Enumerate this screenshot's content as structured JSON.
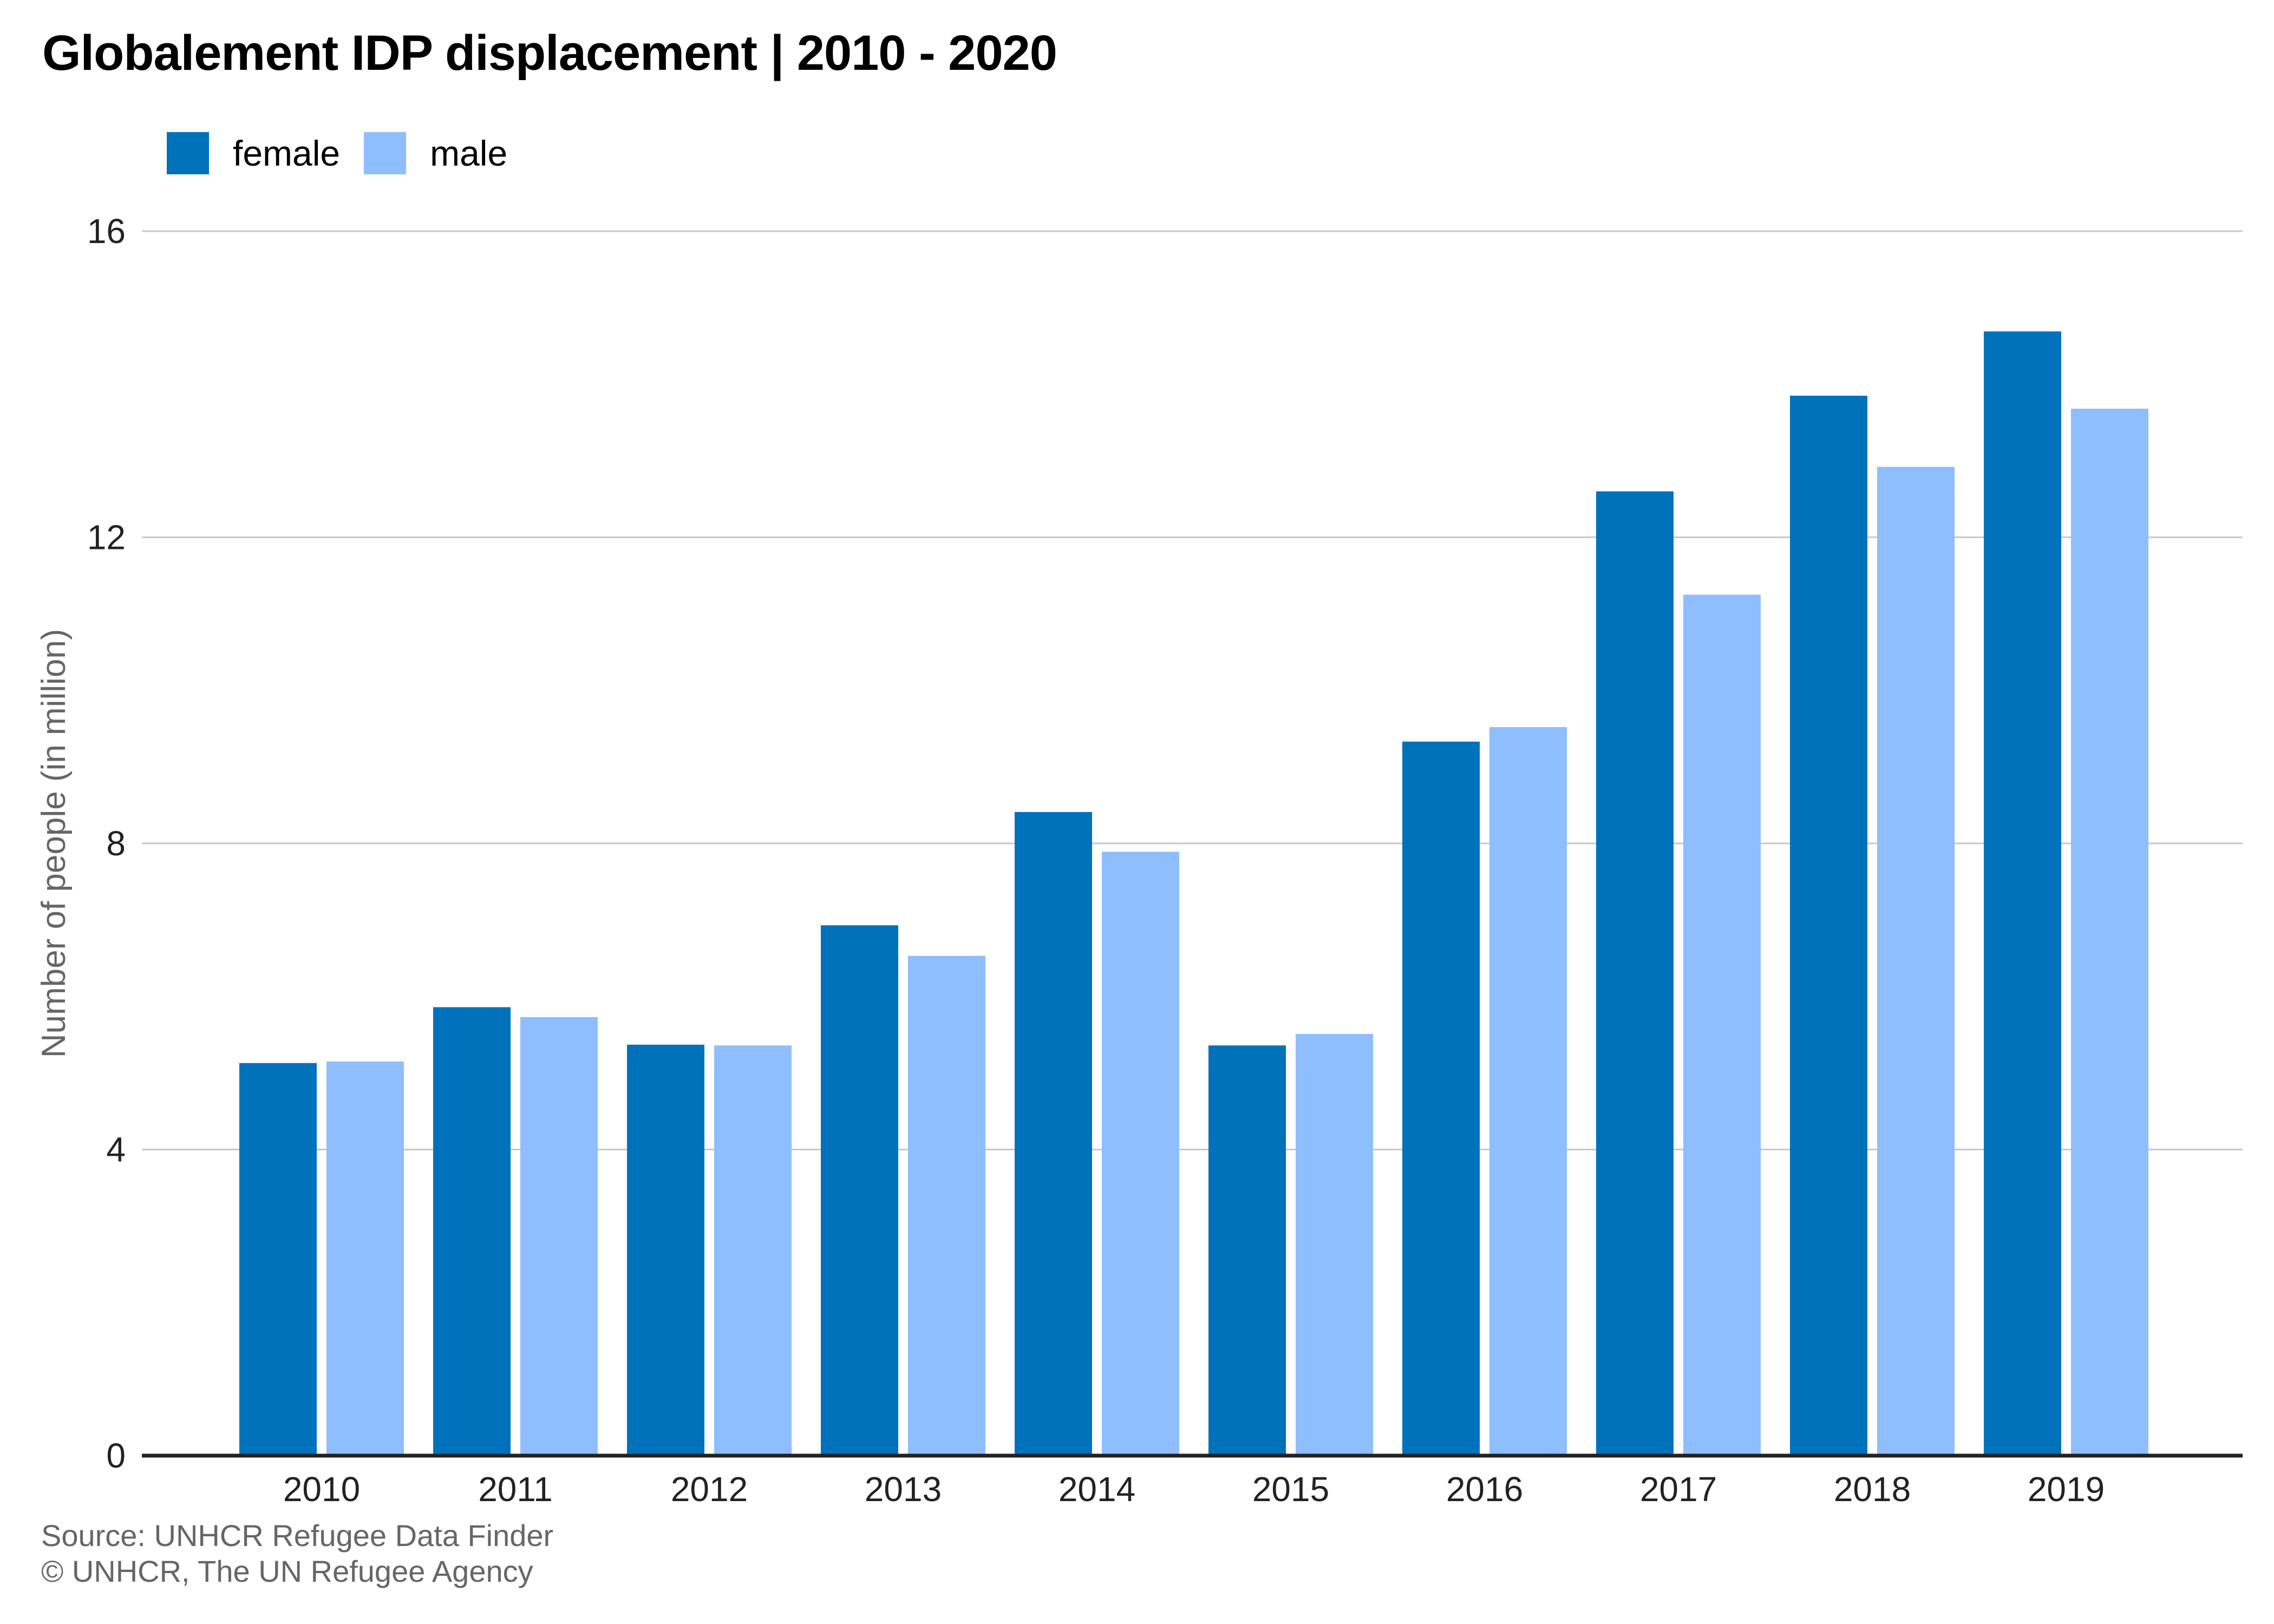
{
  "chart_data": {
    "type": "bar",
    "title": "Globalement IDP displacement | 2010 - 2020",
    "ylabel": "Number of people (in million)",
    "xlabel": "",
    "categories": [
      "2010",
      "2011",
      "2012",
      "2013",
      "2014",
      "2015",
      "2016",
      "2017",
      "2018",
      "2019"
    ],
    "series": [
      {
        "name": "female",
        "color": "#0072bc",
        "values": [
          5.13,
          5.86,
          5.37,
          6.93,
          8.41,
          5.36,
          9.33,
          12.6,
          13.85,
          14.69
        ]
      },
      {
        "name": "male",
        "color": "#8ebefe",
        "values": [
          5.15,
          5.73,
          5.36,
          6.53,
          7.89,
          5.51,
          9.52,
          11.25,
          12.92,
          13.68
        ]
      }
    ],
    "ylim": [
      0,
      16
    ],
    "yticks": [
      "0",
      "4",
      "8",
      "12",
      "16"
    ],
    "grid": true,
    "legend_position": "top-left",
    "source_lines": [
      "Source: UNHCR Refugee Data Finder",
      "© UNHCR, The UN Refugee Agency"
    ]
  }
}
